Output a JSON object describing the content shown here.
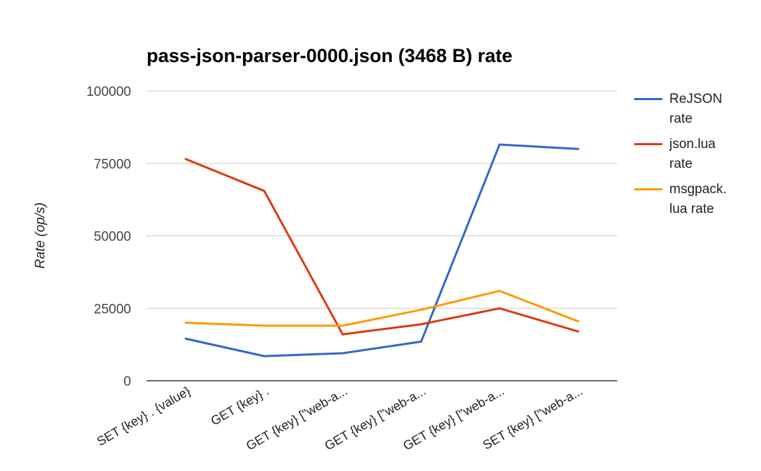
{
  "chart_data": {
    "type": "line",
    "title": "pass-json-parser-0000.json (3468 B) rate",
    "xlabel": "",
    "ylabel": "Rate (op/s)",
    "ylim": [
      0,
      100000
    ],
    "yticks": [
      "0",
      "25000",
      "50000",
      "75000",
      "100000"
    ],
    "ytick_values": [
      0,
      25000,
      50000,
      75000,
      100000
    ],
    "grid": true,
    "legend_position": "right",
    "categories": [
      "SET {key} . {value}",
      "GET {key} .",
      "GET {key} [\"web-a...",
      "GET {key} [\"web-a...",
      "GET {key} [\"web-a...",
      "SET {key} [\"web-a..."
    ],
    "series": [
      {
        "name": "ReJSON rate",
        "color": "#3366cc",
        "values": [
          14500,
          8500,
          9500,
          13500,
          81500,
          80000
        ]
      },
      {
        "name": "json.lua rate",
        "color": "#dc3912",
        "values": [
          76500,
          65500,
          16000,
          19500,
          25000,
          17000
        ]
      },
      {
        "name": "msgpack. lua rate",
        "color": "#ff9900",
        "values": [
          20000,
          19000,
          19000,
          24500,
          31000,
          20500
        ]
      }
    ]
  },
  "legend": {
    "items": [
      {
        "label": "ReJSON rate",
        "label_lines": [
          "ReJSON",
          "rate"
        ],
        "color": "#3366cc"
      },
      {
        "label": "json.lua rate",
        "label_lines": [
          "json.lua",
          "rate"
        ],
        "color": "#dc3912"
      },
      {
        "label": "msgpack. lua rate",
        "label_lines": [
          "msgpack.",
          "lua rate"
        ],
        "color": "#ff9900"
      }
    ]
  }
}
